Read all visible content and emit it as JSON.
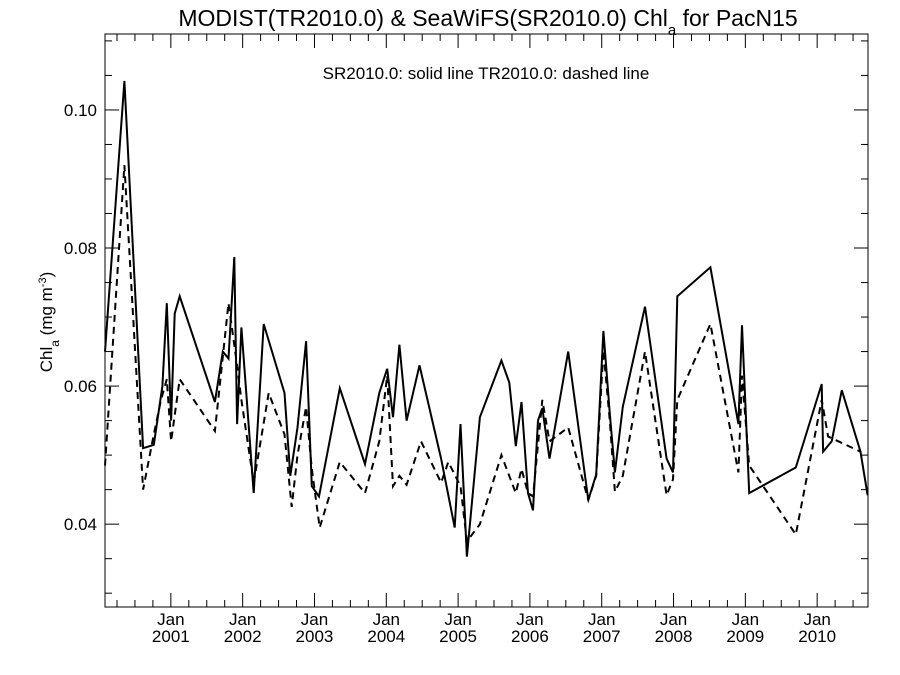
{
  "chart_data": {
    "type": "line",
    "title_parts": {
      "before": "MODIST(TR2010.0) & SeaWiFS(SR2010.0)  Chl",
      "sub": "a",
      "after": " for PacN15"
    },
    "annotation": "SR2010.0: solid line   TR2010.0: dashed line",
    "ylabel_parts": {
      "main": "Chl",
      "sub": "a",
      "unit": " (mg m",
      "sup": "-3",
      "close": ")"
    },
    "xlabel": "",
    "ylim": [
      0.028,
      0.111
    ],
    "xlim": [
      2000.0,
      2010.625
    ],
    "x_ticks": [
      {
        "x": 2000.917,
        "month": "Jan",
        "year": "2001"
      },
      {
        "x": 2001.917,
        "month": "Jan",
        "year": "2002"
      },
      {
        "x": 2002.917,
        "month": "Jan",
        "year": "2003"
      },
      {
        "x": 2003.917,
        "month": "Jan",
        "year": "2004"
      },
      {
        "x": 2004.917,
        "month": "Jan",
        "year": "2005"
      },
      {
        "x": 2005.917,
        "month": "Jan",
        "year": "2006"
      },
      {
        "x": 2006.917,
        "month": "Jan",
        "year": "2007"
      },
      {
        "x": 2007.917,
        "month": "Jan",
        "year": "2008"
      },
      {
        "x": 2008.917,
        "month": "Jan",
        "year": "2009"
      },
      {
        "x": 2009.917,
        "month": "Jan",
        "year": "2010"
      }
    ],
    "y_ticks": [
      "0.04",
      "0.06",
      "0.08",
      "0.10"
    ],
    "y_tick_values": [
      0.04,
      0.06,
      0.08,
      0.1
    ],
    "grid": false,
    "legend": "none",
    "series": [
      {
        "style": "solid",
        "points": [
          [
            2000.0,
            0.065
          ],
          [
            2000.27,
            0.1042
          ],
          [
            2000.53,
            0.051
          ],
          [
            2000.68,
            0.0515
          ],
          [
            2000.8,
            0.06
          ],
          [
            2000.86,
            0.072
          ],
          [
            2000.92,
            0.055
          ],
          [
            2000.97,
            0.0705
          ],
          [
            2001.04,
            0.073
          ],
          [
            2001.53,
            0.0577
          ],
          [
            2001.64,
            0.065
          ],
          [
            2001.72,
            0.064
          ],
          [
            2001.8,
            0.0787
          ],
          [
            2001.84,
            0.0545
          ],
          [
            2001.9,
            0.0685
          ],
          [
            2002.07,
            0.0445
          ],
          [
            2002.21,
            0.069
          ],
          [
            2002.5,
            0.059
          ],
          [
            2002.58,
            0.047
          ],
          [
            2002.68,
            0.054
          ],
          [
            2002.8,
            0.0665
          ],
          [
            2002.88,
            0.0455
          ],
          [
            2002.98,
            0.044
          ],
          [
            2003.27,
            0.0597
          ],
          [
            2003.62,
            0.0487
          ],
          [
            2003.82,
            0.059
          ],
          [
            2003.93,
            0.0625
          ],
          [
            2004.01,
            0.0555
          ],
          [
            2004.1,
            0.066
          ],
          [
            2004.2,
            0.055
          ],
          [
            2004.38,
            0.063
          ],
          [
            2004.68,
            0.0495
          ],
          [
            2004.87,
            0.0395
          ],
          [
            2004.95,
            0.0545
          ],
          [
            2005.04,
            0.0353
          ],
          [
            2005.22,
            0.0555
          ],
          [
            2005.52,
            0.0637
          ],
          [
            2005.63,
            0.0605
          ],
          [
            2005.72,
            0.0513
          ],
          [
            2005.8,
            0.0577
          ],
          [
            2005.89,
            0.0445
          ],
          [
            2005.96,
            0.042
          ],
          [
            2006.03,
            0.055
          ],
          [
            2006.09,
            0.0568
          ],
          [
            2006.19,
            0.0495
          ],
          [
            2006.45,
            0.065
          ],
          [
            2006.73,
            0.0435
          ],
          [
            2006.84,
            0.0472
          ],
          [
            2006.94,
            0.068
          ],
          [
            2007.03,
            0.056
          ],
          [
            2007.1,
            0.0475
          ],
          [
            2007.21,
            0.057
          ],
          [
            2007.52,
            0.0715
          ],
          [
            2007.82,
            0.0495
          ],
          [
            2007.91,
            0.0475
          ],
          [
            2007.97,
            0.073
          ],
          [
            2008.43,
            0.0772
          ],
          [
            2008.82,
            0.0545
          ],
          [
            2008.87,
            0.0688
          ],
          [
            2008.97,
            0.0445
          ],
          [
            2009.62,
            0.0482
          ],
          [
            2009.98,
            0.0603
          ],
          [
            2010.0,
            0.0505
          ],
          [
            2010.12,
            0.052
          ],
          [
            2010.26,
            0.0594
          ],
          [
            2010.52,
            0.0505
          ],
          [
            2010.62,
            0.0442
          ]
        ]
      },
      {
        "style": "dashed",
        "points": [
          [
            2000.0,
            0.0485
          ],
          [
            2000.27,
            0.092
          ],
          [
            2000.53,
            0.045
          ],
          [
            2000.68,
            0.053
          ],
          [
            2000.78,
            0.058
          ],
          [
            2000.86,
            0.061
          ],
          [
            2000.92,
            0.052
          ],
          [
            2001.04,
            0.061
          ],
          [
            2001.53,
            0.0535
          ],
          [
            2001.72,
            0.072
          ],
          [
            2001.84,
            0.063
          ],
          [
            2001.9,
            0.058
          ],
          [
            2002.07,
            0.046
          ],
          [
            2002.28,
            0.059
          ],
          [
            2002.5,
            0.053
          ],
          [
            2002.6,
            0.0425
          ],
          [
            2002.68,
            0.05
          ],
          [
            2002.8,
            0.057
          ],
          [
            2002.88,
            0.048
          ],
          [
            2002.99,
            0.0395
          ],
          [
            2003.27,
            0.049
          ],
          [
            2003.62,
            0.0445
          ],
          [
            2003.82,
            0.052
          ],
          [
            2003.93,
            0.0615
          ],
          [
            2004.01,
            0.0455
          ],
          [
            2004.1,
            0.047
          ],
          [
            2004.2,
            0.0457
          ],
          [
            2004.4,
            0.052
          ],
          [
            2004.68,
            0.046
          ],
          [
            2004.78,
            0.049
          ],
          [
            2004.95,
            0.0455
          ],
          [
            2005.04,
            0.0375
          ],
          [
            2005.22,
            0.04
          ],
          [
            2005.52,
            0.05
          ],
          [
            2005.72,
            0.0445
          ],
          [
            2005.8,
            0.048
          ],
          [
            2005.89,
            0.0445
          ],
          [
            2005.96,
            0.044
          ],
          [
            2006.09,
            0.058
          ],
          [
            2006.19,
            0.052
          ],
          [
            2006.45,
            0.054
          ],
          [
            2006.73,
            0.0435
          ],
          [
            2006.84,
            0.047
          ],
          [
            2006.94,
            0.0652
          ],
          [
            2007.03,
            0.055
          ],
          [
            2007.1,
            0.0447
          ],
          [
            2007.21,
            0.047
          ],
          [
            2007.52,
            0.065
          ],
          [
            2007.82,
            0.0442
          ],
          [
            2007.91,
            0.0465
          ],
          [
            2007.97,
            0.058
          ],
          [
            2008.43,
            0.069
          ],
          [
            2008.82,
            0.0475
          ],
          [
            2008.87,
            0.0615
          ],
          [
            2008.97,
            0.0485
          ],
          [
            2009.62,
            0.0385
          ],
          [
            2009.98,
            0.058
          ],
          [
            2010.07,
            0.0527
          ],
          [
            2010.52,
            0.0505
          ]
        ]
      }
    ]
  }
}
